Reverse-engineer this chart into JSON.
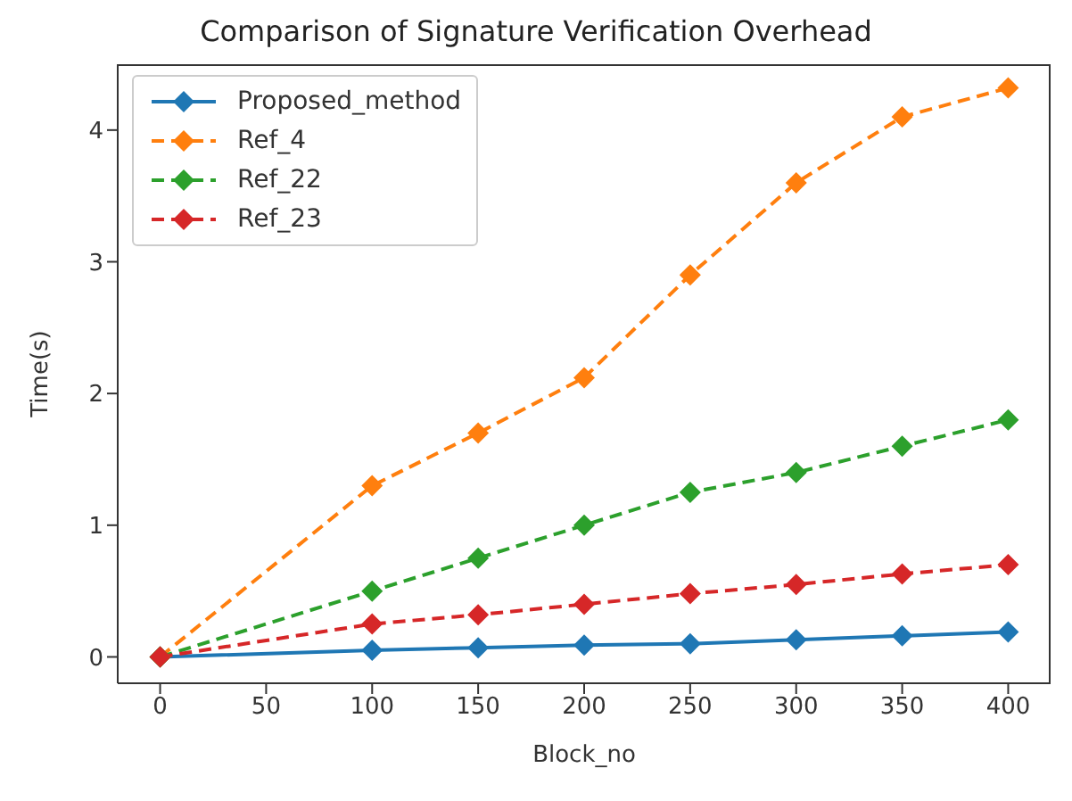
{
  "chart_data": {
    "type": "line",
    "title": "Comparison of Signature Verification Overhead",
    "xlabel": "Block_no",
    "ylabel": "Time(s)",
    "x": [
      0,
      100,
      150,
      200,
      250,
      300,
      350,
      400
    ],
    "series": [
      {
        "name": "Proposed_method",
        "color": "#1f77b4",
        "line_style": "solid",
        "values": [
          0,
          0.05,
          0.07,
          0.09,
          0.1,
          0.13,
          0.16,
          0.19
        ]
      },
      {
        "name": "Ref_4",
        "color": "#ff7f0e",
        "line_style": "dashed",
        "values": [
          0,
          1.3,
          1.7,
          2.12,
          2.9,
          3.6,
          4.1,
          4.32
        ]
      },
      {
        "name": "Ref_22",
        "color": "#2ca02c",
        "line_style": "dashed",
        "values": [
          0,
          0.5,
          0.75,
          1.0,
          1.25,
          1.4,
          1.6,
          1.8
        ]
      },
      {
        "name": "Ref_23",
        "color": "#d62728",
        "line_style": "dashed",
        "values": [
          0,
          0.25,
          0.32,
          0.4,
          0.48,
          0.55,
          0.63,
          0.7
        ]
      }
    ],
    "xlim": [
      -20,
      420
    ],
    "xticks": [
      0,
      50,
      100,
      150,
      200,
      250,
      300,
      350,
      400
    ],
    "ylim": [
      -0.2,
      4.5
    ],
    "yticks": [
      0,
      1,
      2,
      3,
      4
    ],
    "grid": false,
    "legend": "top left",
    "marker": "diamond"
  }
}
